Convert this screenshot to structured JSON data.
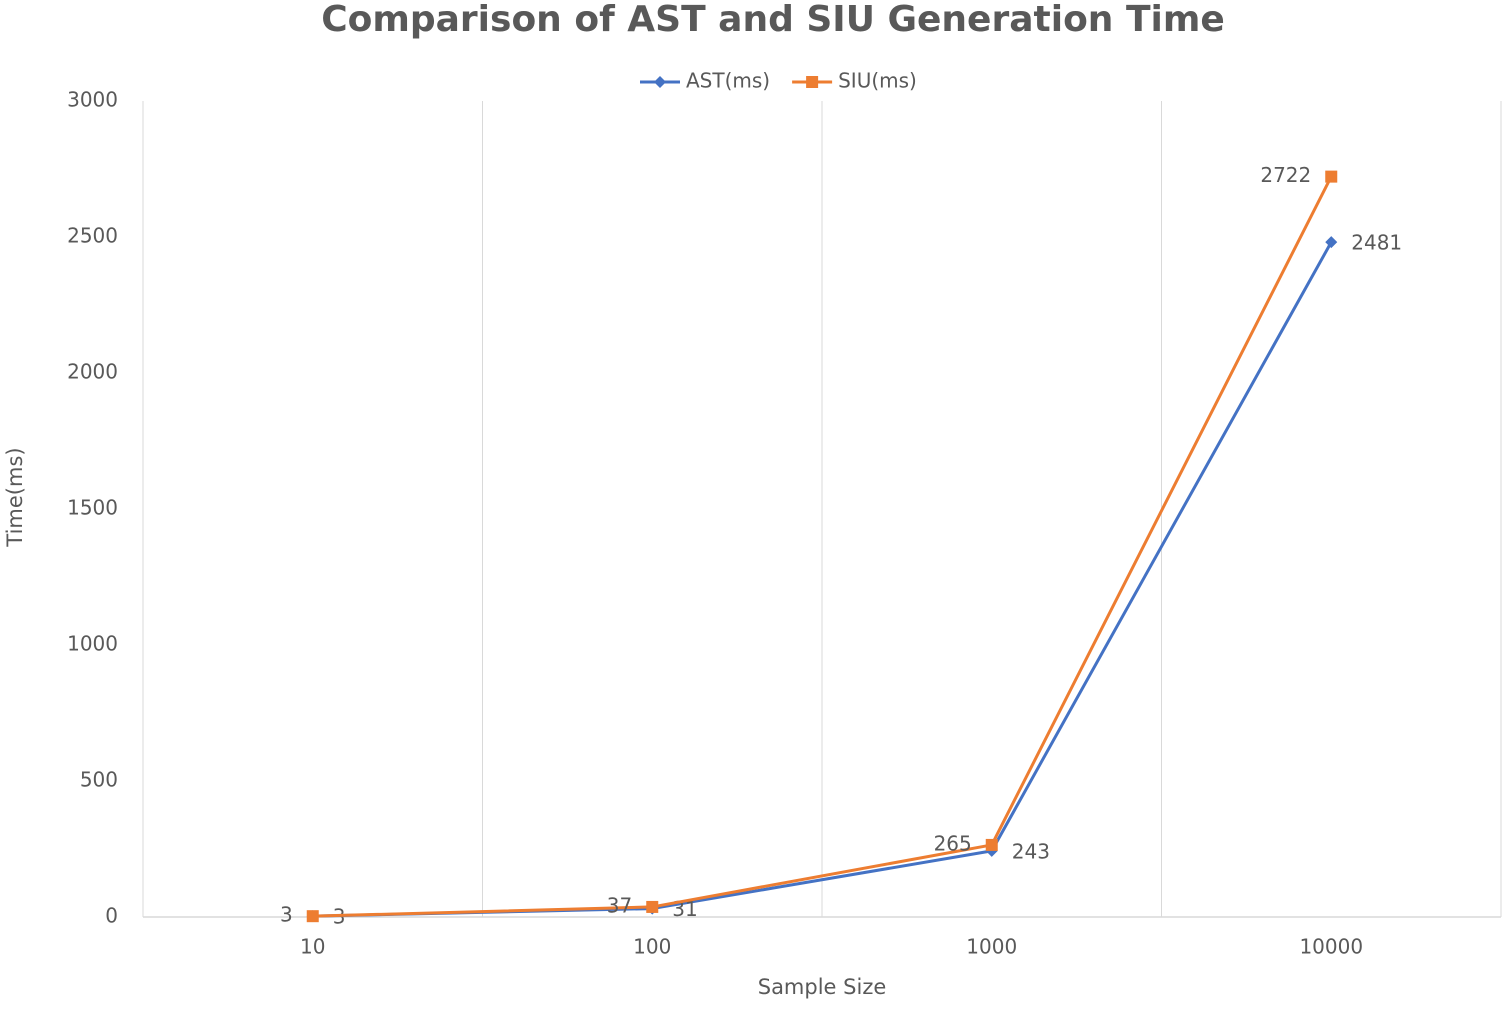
{
  "chart_data": {
    "type": "line",
    "title": "Comparison of AST and SIU Generation Time",
    "x_label": "Sample Size",
    "y_label": "Time(ms)",
    "categories": [
      "10",
      "100",
      "1000",
      "10000"
    ],
    "series": [
      {
        "name": "AST(ms)",
        "color": "#4472c4",
        "marker": "diamond",
        "label_side": "right",
        "values": [
          3,
          31,
          243,
          2481
        ]
      },
      {
        "name": "SIU(ms)",
        "color": "#ed7d31",
        "marker": "square",
        "label_side": "left",
        "values": [
          3,
          37,
          265,
          2722
        ]
      }
    ],
    "ylim": [
      0,
      3000
    ],
    "yticks": [
      0,
      500,
      1000,
      1500,
      2000,
      2500,
      3000
    ],
    "legend": "top",
    "grid": "x"
  }
}
